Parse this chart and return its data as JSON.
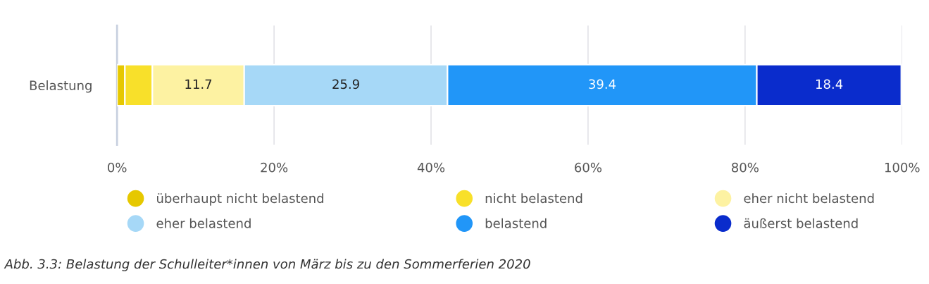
{
  "chart_data": {
    "type": "bar",
    "orientation": "horizontal",
    "stacked": true,
    "categories": [
      "Belastung"
    ],
    "series": [
      {
        "name": "überhaupt nicht belastend",
        "color": "#e6c800",
        "values": [
          1.0
        ],
        "value_labels": [
          null
        ]
      },
      {
        "name": "nicht belastend",
        "color": "#f8e02a",
        "values": [
          3.5
        ],
        "value_labels": [
          null
        ]
      },
      {
        "name": "eher nicht belastend",
        "color": "#fdf2a2",
        "values": [
          11.7
        ],
        "value_labels": [
          "11.7"
        ]
      },
      {
        "name": "eher belastend",
        "color": "#a6d8f7",
        "values": [
          25.9
        ],
        "value_labels": [
          "25.9"
        ]
      },
      {
        "name": "belastend",
        "color": "#2196f8",
        "values": [
          39.4
        ],
        "value_labels": [
          "39.4"
        ]
      },
      {
        "name": "äußerst belastend",
        "color": "#0a2ccc",
        "values": [
          18.4
        ],
        "value_labels": [
          "18.4"
        ]
      }
    ],
    "xlim": [
      0,
      100
    ],
    "xticks": [
      {
        "value": 0,
        "label": "0%"
      },
      {
        "value": 20,
        "label": "20%"
      },
      {
        "value": 40,
        "label": "40%"
      },
      {
        "value": 60,
        "label": "60%"
      },
      {
        "value": 80,
        "label": "80%"
      },
      {
        "value": 100,
        "label": "100%"
      }
    ],
    "grid": "x",
    "legend": "bottom",
    "annotations": [
      "Abb. 3.3: Belastung der Schulleiter*innen von März bis zu den Sommerferien 2020"
    ]
  }
}
